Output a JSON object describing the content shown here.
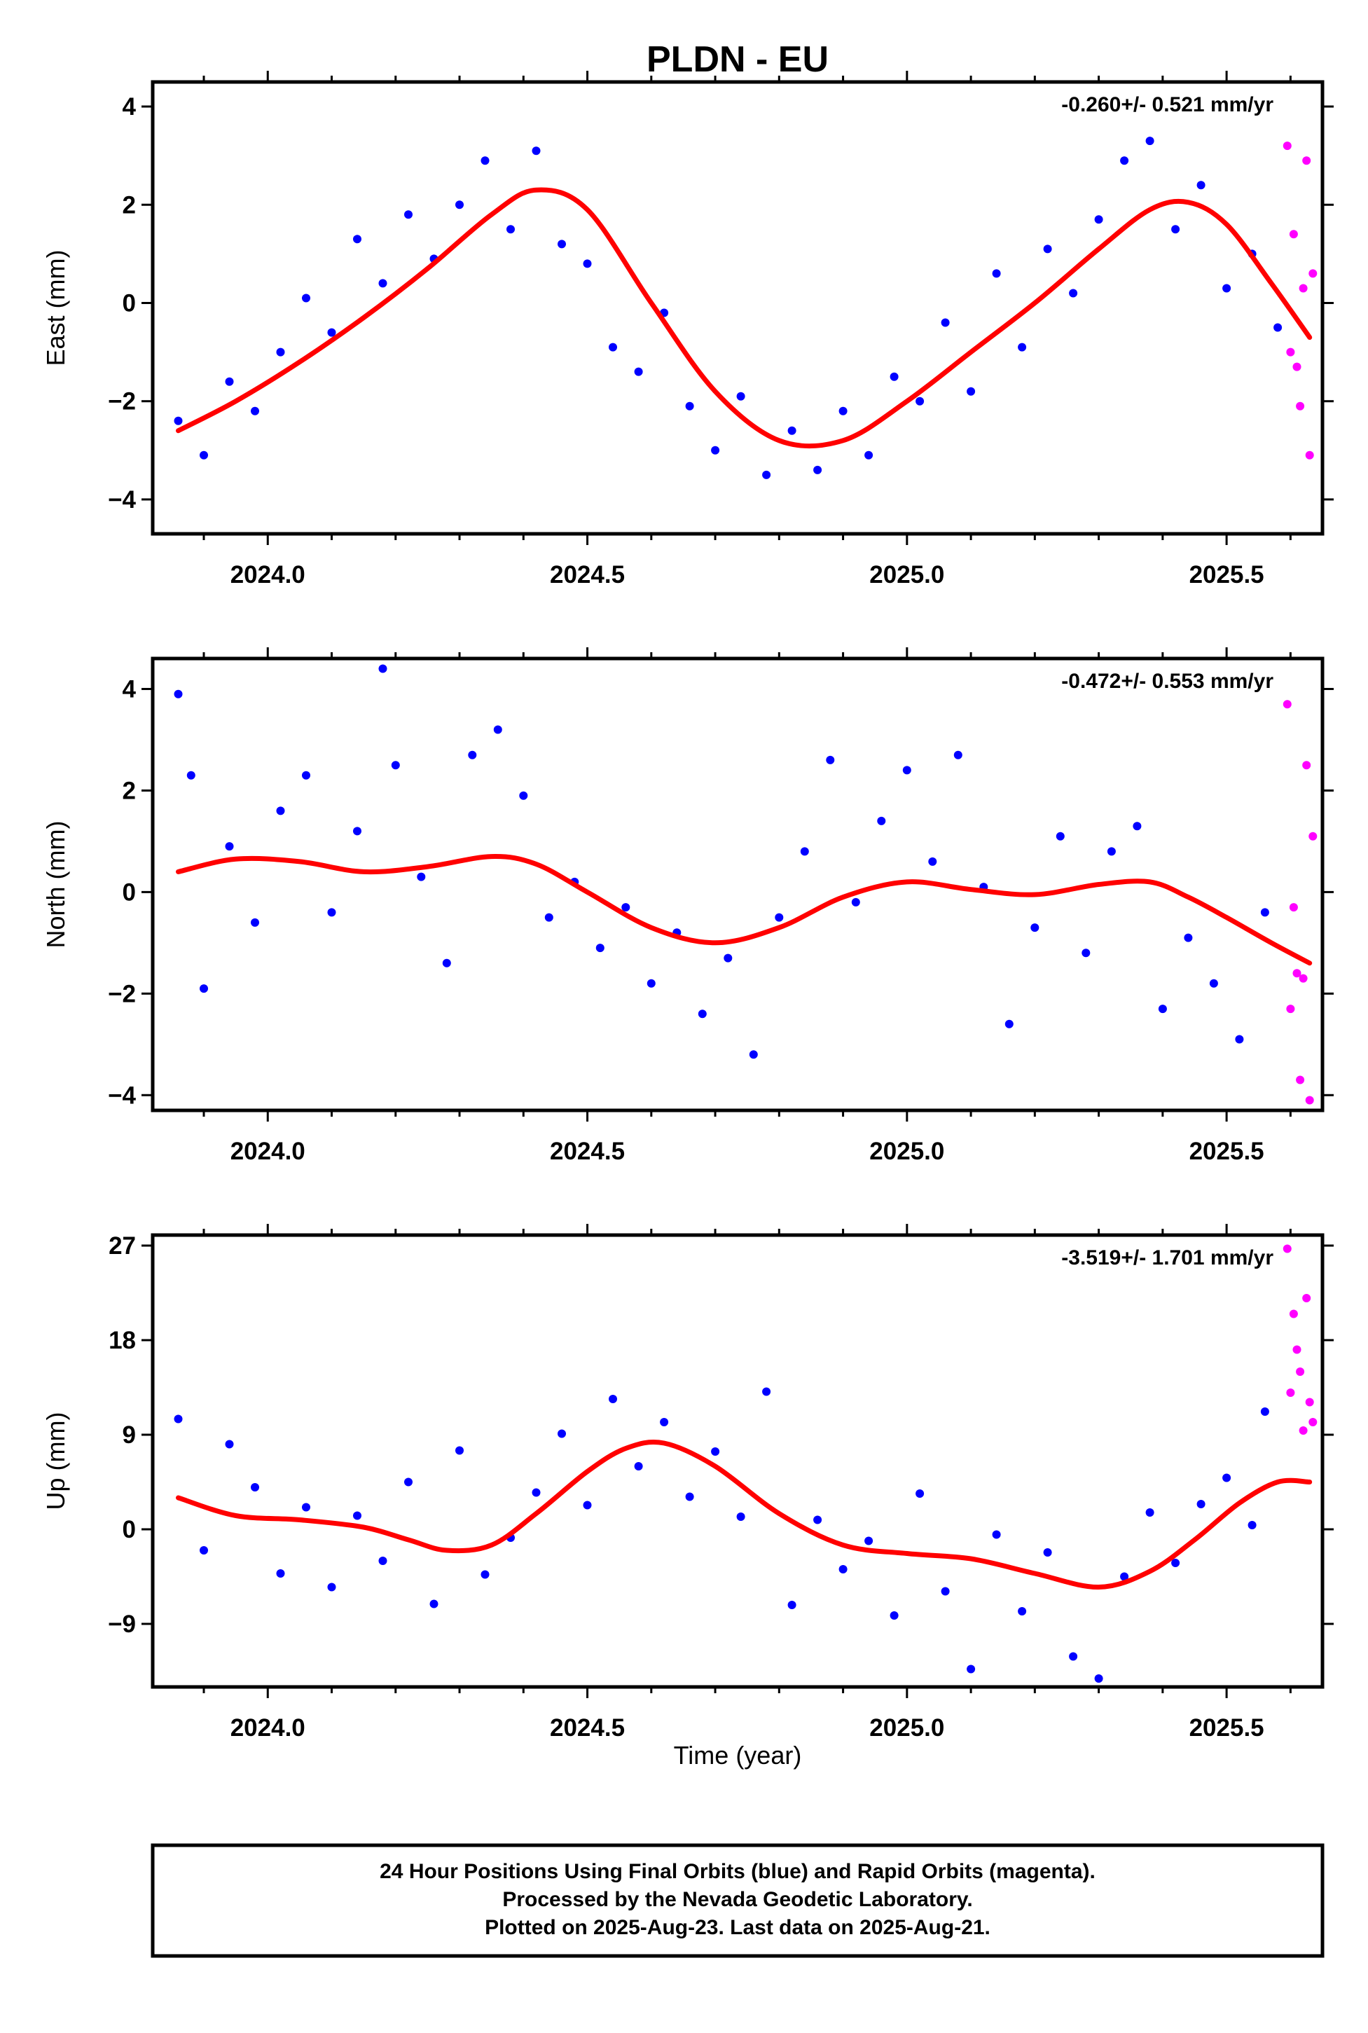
{
  "chart_data": {
    "type": "scatter",
    "title": "PLDN - EU",
    "xlabel": "Time (year)",
    "xlim": [
      2023.82,
      2025.65
    ],
    "xticks": [
      2024.0,
      2024.5,
      2025.0,
      2025.5
    ],
    "xtick_labels": [
      "2024.0",
      "2024.5",
      "2025.0",
      "2025.5"
    ],
    "legend": "none",
    "grid": false,
    "colors": {
      "final": "#0000ff",
      "rapid": "#ff00ff",
      "fit": "#ff0000",
      "frame": "#000000"
    },
    "panels": [
      {
        "id": "east",
        "ylabel": "East (mm)",
        "rate": "-0.260+/- 0.521 mm/yr",
        "ylim": [
          -4.7,
          4.5
        ],
        "yticks": [
          -4,
          -2,
          0,
          2,
          4
        ],
        "ytick_labels": [
          "−4",
          "−2",
          "0",
          "2",
          "4"
        ],
        "fit": {
          "x": [
            2023.86,
            2023.95,
            2024.05,
            2024.15,
            2024.25,
            2024.35,
            2024.42,
            2024.5,
            2024.6,
            2024.7,
            2024.8,
            2024.9,
            2025.0,
            2025.1,
            2025.2,
            2025.3,
            2025.38,
            2025.44,
            2025.5,
            2025.57,
            2025.63
          ],
          "y": [
            -2.6,
            -2.0,
            -1.2,
            -0.3,
            0.7,
            1.8,
            2.3,
            1.9,
            0.0,
            -1.8,
            -2.8,
            -2.8,
            -2.0,
            -1.0,
            0.0,
            1.1,
            1.9,
            2.05,
            1.6,
            0.4,
            -0.7
          ]
        },
        "series": [
          {
            "name": "Final Orbits",
            "x": [
              2023.86,
              2023.9,
              2023.94,
              2023.98,
              2024.02,
              2024.06,
              2024.1,
              2024.14,
              2024.18,
              2024.22,
              2024.26,
              2024.3,
              2024.34,
              2024.38,
              2024.42,
              2024.46,
              2024.5,
              2024.54,
              2024.58,
              2024.62,
              2024.66,
              2024.7,
              2024.74,
              2024.78,
              2024.82,
              2024.86,
              2024.9,
              2024.94,
              2024.98,
              2025.02,
              2025.06,
              2025.1,
              2025.14,
              2025.18,
              2025.22,
              2025.26,
              2025.3,
              2025.34,
              2025.38,
              2025.42,
              2025.46,
              2025.5,
              2025.54,
              2025.58
            ],
            "y": [
              -2.4,
              -3.1,
              -1.6,
              -2.2,
              -1.0,
              0.1,
              -0.6,
              1.3,
              0.4,
              1.8,
              0.9,
              2.0,
              2.9,
              1.5,
              3.1,
              1.2,
              0.8,
              -0.9,
              -1.4,
              -0.2,
              -2.1,
              -3.0,
              -1.9,
              -3.5,
              -2.6,
              -3.4,
              -2.2,
              -3.1,
              -1.5,
              -2.0,
              -0.4,
              -1.8,
              0.6,
              -0.9,
              1.1,
              0.2,
              1.7,
              2.9,
              3.3,
              1.5,
              2.4,
              0.3,
              1.0,
              -0.5
            ]
          },
          {
            "name": "Rapid Orbits",
            "x": [
              2025.595,
              2025.6,
              2025.605,
              2025.61,
              2025.615,
              2025.62,
              2025.625,
              2025.63,
              2025.635
            ],
            "y": [
              3.2,
              -1.0,
              1.4,
              -1.3,
              -2.1,
              0.3,
              2.9,
              -3.1,
              0.6
            ]
          }
        ]
      },
      {
        "id": "north",
        "ylabel": "North (mm)",
        "rate": "-0.472+/- 0.553 mm/yr",
        "ylim": [
          -4.3,
          4.6
        ],
        "yticks": [
          -4,
          -2,
          0,
          2,
          4
        ],
        "ytick_labels": [
          "−4",
          "−2",
          "0",
          "2",
          "4"
        ],
        "fit": {
          "x": [
            2023.86,
            2023.95,
            2024.05,
            2024.15,
            2024.25,
            2024.35,
            2024.42,
            2024.5,
            2024.6,
            2024.7,
            2024.8,
            2024.9,
            2025.0,
            2025.1,
            2025.2,
            2025.3,
            2025.38,
            2025.44,
            2025.5,
            2025.57,
            2025.63
          ],
          "y": [
            0.4,
            0.65,
            0.6,
            0.4,
            0.5,
            0.7,
            0.55,
            0.0,
            -0.7,
            -1.0,
            -0.7,
            -0.1,
            0.2,
            0.05,
            -0.05,
            0.15,
            0.2,
            -0.1,
            -0.5,
            -1.0,
            -1.4
          ]
        },
        "series": [
          {
            "name": "Final Orbits",
            "x": [
              2023.86,
              2023.88,
              2023.9,
              2023.94,
              2023.98,
              2024.02,
              2024.06,
              2024.1,
              2024.14,
              2024.18,
              2024.2,
              2024.24,
              2024.28,
              2024.32,
              2024.36,
              2024.4,
              2024.44,
              2024.48,
              2024.52,
              2024.56,
              2024.6,
              2024.64,
              2024.68,
              2024.72,
              2024.76,
              2024.8,
              2024.84,
              2024.88,
              2024.92,
              2024.96,
              2025.0,
              2025.04,
              2025.08,
              2025.12,
              2025.16,
              2025.2,
              2025.24,
              2025.28,
              2025.32,
              2025.36,
              2025.4,
              2025.44,
              2025.48,
              2025.52,
              2025.56
            ],
            "y": [
              3.9,
              2.3,
              -1.9,
              0.9,
              -0.6,
              1.6,
              2.3,
              -0.4,
              1.2,
              4.4,
              2.5,
              0.3,
              -1.4,
              2.7,
              3.2,
              1.9,
              -0.5,
              0.2,
              -1.1,
              -0.3,
              -1.8,
              -0.8,
              -2.4,
              -1.3,
              -3.2,
              -0.5,
              0.8,
              2.6,
              -0.2,
              1.4,
              2.4,
              0.6,
              2.7,
              0.1,
              -2.6,
              -0.7,
              1.1,
              -1.2,
              0.8,
              1.3,
              -2.3,
              -0.9,
              -1.8,
              -2.9,
              -0.4
            ]
          },
          {
            "name": "Rapid Orbits",
            "x": [
              2025.595,
              2025.6,
              2025.605,
              2025.61,
              2025.615,
              2025.62,
              2025.625,
              2025.63,
              2025.635
            ],
            "y": [
              3.7,
              -2.3,
              -0.3,
              -1.6,
              -3.7,
              -1.7,
              2.5,
              -4.1,
              1.1
            ]
          }
        ]
      },
      {
        "id": "up",
        "ylabel": "Up (mm)",
        "rate": "-3.519+/- 1.701 mm/yr",
        "ylim": [
          -15,
          28
        ],
        "yticks": [
          -9,
          0,
          9,
          18,
          27
        ],
        "ytick_labels": [
          "−9",
          "0",
          "9",
          "18",
          "27"
        ],
        "fit": {
          "x": [
            2023.86,
            2023.95,
            2024.05,
            2024.15,
            2024.22,
            2024.28,
            2024.35,
            2024.42,
            2024.5,
            2024.56,
            2024.62,
            2024.7,
            2024.8,
            2024.9,
            2025.0,
            2025.1,
            2025.2,
            2025.3,
            2025.38,
            2025.45,
            2025.52,
            2025.58,
            2025.63
          ],
          "y": [
            3.0,
            1.3,
            0.9,
            0.2,
            -1.0,
            -2.0,
            -1.5,
            1.5,
            5.5,
            7.7,
            8.2,
            6.0,
            1.5,
            -1.5,
            -2.3,
            -2.8,
            -4.2,
            -5.5,
            -4.0,
            -1.0,
            2.5,
            4.5,
            4.5
          ]
        },
        "series": [
          {
            "name": "Final Orbits",
            "x": [
              2023.86,
              2023.9,
              2023.94,
              2023.98,
              2024.02,
              2024.06,
              2024.1,
              2024.14,
              2024.18,
              2024.22,
              2024.26,
              2024.3,
              2024.34,
              2024.38,
              2024.42,
              2024.46,
              2024.5,
              2024.54,
              2024.58,
              2024.62,
              2024.66,
              2024.7,
              2024.74,
              2024.78,
              2024.82,
              2024.86,
              2024.9,
              2024.94,
              2024.98,
              2025.02,
              2025.06,
              2025.1,
              2025.14,
              2025.18,
              2025.22,
              2025.26,
              2025.3,
              2025.34,
              2025.38,
              2025.42,
              2025.46,
              2025.5,
              2025.54,
              2025.56
            ],
            "y": [
              10.5,
              -2.0,
              8.1,
              4.0,
              -4.2,
              2.1,
              -5.5,
              1.3,
              -3.0,
              4.5,
              -7.1,
              7.5,
              -4.3,
              -0.8,
              3.5,
              9.1,
              2.3,
              12.4,
              6.0,
              10.2,
              3.1,
              7.4,
              1.2,
              13.1,
              -7.2,
              0.9,
              -3.8,
              -1.1,
              -8.2,
              3.4,
              -5.9,
              -13.3,
              -0.5,
              -7.8,
              -2.2,
              -12.1,
              -14.2,
              -4.5,
              1.6,
              -3.2,
              2.4,
              4.9,
              0.4,
              11.2
            ]
          },
          {
            "name": "Rapid Orbits",
            "x": [
              2025.595,
              2025.6,
              2025.605,
              2025.61,
              2025.615,
              2025.62,
              2025.625,
              2025.63,
              2025.635
            ],
            "y": [
              26.7,
              13.0,
              20.5,
              17.1,
              15.0,
              9.4,
              22.0,
              12.1,
              10.2
            ]
          }
        ]
      }
    ],
    "footer": [
      "24 Hour Positions Using Final Orbits (blue) and Rapid Orbits (magenta).",
      "Processed by the Nevada Geodetic Laboratory.",
      "Plotted on 2025-Aug-23. Last data on 2025-Aug-21."
    ]
  }
}
